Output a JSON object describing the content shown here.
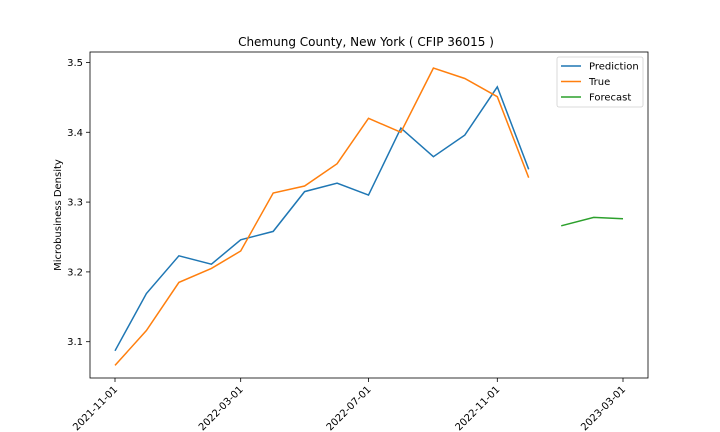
{
  "chart_data": {
    "type": "line",
    "title": "Chemung County, New York ( CFIP 36015 )",
    "xlabel": "",
    "ylabel": "Microbusiness Density",
    "ylim": [
      3.048,
      3.515
    ],
    "yticks": [
      3.1,
      3.2,
      3.3,
      3.4,
      3.5
    ],
    "ytick_labels": [
      "3.1",
      "3.2",
      "3.3",
      "3.4",
      "3.5"
    ],
    "xticks": [
      "2021-11-01",
      "2022-03-01",
      "2022-07-01",
      "2022-11-01",
      "2023-03-01"
    ],
    "legend_position": "top-right",
    "grid": false,
    "series": [
      {
        "name": "Prediction",
        "color": "#1f77b4",
        "x": [
          "2021-11-01",
          "2021-12-01",
          "2022-01-01",
          "2022-02-01",
          "2022-03-01",
          "2022-04-01",
          "2022-05-01",
          "2022-06-01",
          "2022-07-01",
          "2022-08-01",
          "2022-09-01",
          "2022-10-01",
          "2022-11-01",
          "2022-12-01"
        ],
        "values": [
          3.087,
          3.169,
          3.223,
          3.211,
          3.246,
          3.258,
          3.315,
          3.327,
          3.31,
          3.406,
          3.365,
          3.396,
          3.465,
          3.347
        ]
      },
      {
        "name": "True",
        "color": "#ff7f0e",
        "x": [
          "2021-11-01",
          "2021-12-01",
          "2022-01-01",
          "2022-02-01",
          "2022-03-01",
          "2022-04-01",
          "2022-05-01",
          "2022-06-01",
          "2022-07-01",
          "2022-08-01",
          "2022-09-01",
          "2022-10-01",
          "2022-11-01",
          "2022-12-01"
        ],
        "values": [
          3.066,
          3.116,
          3.185,
          3.205,
          3.23,
          3.313,
          3.323,
          3.355,
          3.42,
          3.4,
          3.492,
          3.477,
          3.451,
          3.335
        ]
      },
      {
        "name": "Forecast",
        "color": "#2ca02c",
        "x": [
          "2023-01-01",
          "2023-02-01",
          "2023-03-01"
        ],
        "values": [
          3.266,
          3.278,
          3.276
        ]
      }
    ]
  }
}
